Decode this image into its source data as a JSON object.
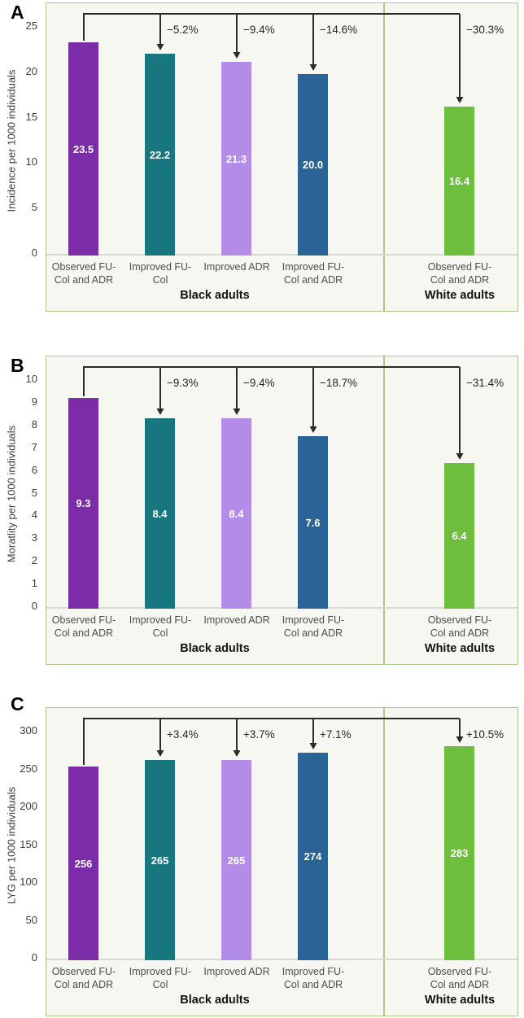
{
  "figure": {
    "bar_colors": [
      "#7B2DA8",
      "#17767E",
      "#B38CE8",
      "#2A6496",
      "#6CBE3C"
    ],
    "panel_border_color": "#AEC88A",
    "plot_background": "#F7F7F1",
    "arrow_color": "#2B2B2B",
    "baseline_color": "#D9D9D3",
    "value_label_color": "#FFFFFF"
  },
  "chart_data": [
    {
      "type": "bar",
      "panel": "A",
      "ylabel": "Incidence per 1000 individuals",
      "ymax": 25,
      "ylim": [
        0,
        25
      ],
      "yticks": [
        0,
        5,
        10,
        15,
        20,
        25
      ],
      "categories": [
        "Observed FU-Col and ADR",
        "Improved FU-Col",
        "Improved ADR",
        "Improved FU-Col and ADR",
        "Observed FU-Col and ADR"
      ],
      "category_lines": [
        [
          "Observed FU-",
          "Col and ADR"
        ],
        [
          "Improved FU-",
          "Col"
        ],
        [
          "Improved ADR"
        ],
        [
          "Improved FU-",
          "Col and ADR"
        ],
        [
          "Observed FU-",
          "Col and ADR"
        ]
      ],
      "values": [
        23.5,
        22.2,
        21.3,
        20.0,
        16.4
      ],
      "value_labels": [
        "23.5",
        "22.2",
        "21.3",
        "20.0",
        "16.4"
      ],
      "pct_change": [
        "−5.2%",
        "−9.4%",
        "−14.6%",
        "−30.3%"
      ],
      "group_labels": [
        "Black adults",
        "White adults"
      ],
      "grid": false,
      "legend": false
    },
    {
      "type": "bar",
      "panel": "B",
      "ylabel": "Moratlity per 1000 individuals",
      "ymax": 10,
      "ylim": [
        0,
        10
      ],
      "yticks": [
        0,
        1,
        2,
        3,
        4,
        5,
        6,
        7,
        8,
        9,
        10
      ],
      "categories": [
        "Observed FU-Col and ADR",
        "Improved FU-Col",
        "Improved ADR",
        "Improved FU-Col and ADR",
        "Observed FU-Col and ADR"
      ],
      "category_lines": [
        [
          "Observed FU-",
          "Col and ADR"
        ],
        [
          "Improved FU-",
          "Col"
        ],
        [
          "Improved ADR"
        ],
        [
          "Improved FU-",
          "Col and ADR"
        ],
        [
          "Observed FU-",
          "Col and ADR"
        ]
      ],
      "values": [
        9.3,
        8.4,
        8.4,
        7.6,
        6.4
      ],
      "value_labels": [
        "9.3",
        "8.4",
        "8.4",
        "7.6",
        "6.4"
      ],
      "pct_change": [
        "−9.3%",
        "−9.4%",
        "−18.7%",
        "−31.4%"
      ],
      "group_labels": [
        "Black adults",
        "White adults"
      ],
      "grid": false,
      "legend": false
    },
    {
      "type": "bar",
      "panel": "C",
      "ylabel": "LYG per 1000 individuals",
      "ymax": 300,
      "ylim": [
        0,
        300
      ],
      "yticks": [
        0,
        50,
        100,
        150,
        200,
        250,
        300
      ],
      "categories": [
        "Observed FU-Col and ADR",
        "Improved FU-Col",
        "Improved ADR",
        "Improved FU-Col and ADR",
        "Observed FU-Col and ADR"
      ],
      "category_lines": [
        [
          "Observed FU-",
          "Col and ADR"
        ],
        [
          "Improved FU-",
          "Col"
        ],
        [
          "Improved ADR"
        ],
        [
          "Improved FU-",
          "Col and ADR"
        ],
        [
          "Observed FU-",
          "Col and ADR"
        ]
      ],
      "values": [
        256,
        265,
        265,
        274,
        283
      ],
      "value_labels": [
        "256",
        "265",
        "265",
        "274",
        "283"
      ],
      "pct_change": [
        "+3.4%",
        "+3.7%",
        "+7.1%",
        "+10.5%"
      ],
      "group_labels": [
        "Black adults",
        "White adults"
      ],
      "grid": false,
      "legend": false
    }
  ]
}
